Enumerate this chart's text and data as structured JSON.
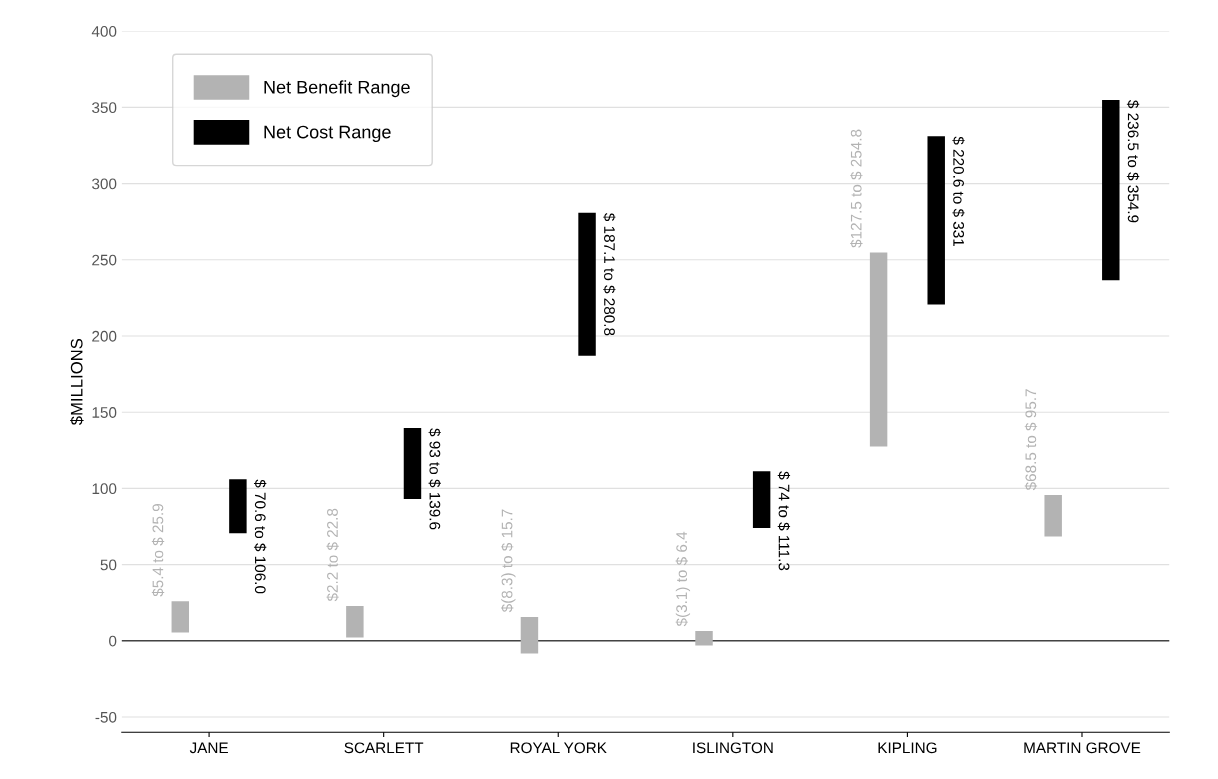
{
  "chart_data": {
    "type": "bar",
    "ylabel": "$MILLIONS",
    "categories": [
      "JANE",
      "SCARLETT",
      "ROYAL YORK",
      "ISLINGTON",
      "KIPLING",
      "MARTIN GROVE"
    ],
    "series": [
      {
        "name": "Net Benefit Range",
        "color": "#b3b3b3",
        "base": [
          5.4,
          2.2,
          -8.3,
          -3.1,
          127.5,
          68.5
        ],
        "values": [
          20.5,
          20.6,
          24.0,
          9.5,
          127.3,
          27.2
        ]
      },
      {
        "name": "Net Cost Range",
        "color": "#000000",
        "base": [
          70.6,
          93,
          187.1,
          74,
          220.6,
          236.5
        ],
        "values": [
          35.4,
          46.6,
          93.7,
          37.3,
          110.4,
          118.4
        ],
        "value_labels": [
          "$ 70.6 to $ 106.0",
          "$ 93 to $ 139.6",
          "$ 187.1 to $ 280.8",
          "$ 74 to $ 111.3",
          "$ 220.6 to $ 331",
          "$ 236.5 to $ 354.9"
        ]
      }
    ],
    "ylim": [
      -60,
      400
    ],
    "yticks": [
      -50,
      0,
      50,
      100,
      150,
      200,
      250,
      300,
      350,
      400
    ],
    "annotations": [
      "$5.4 to $ 25.9",
      "$2.2 to $ 22.8",
      "$(8.3) to $ 15.7",
      "$(3.1) to $ 6.4",
      "$127.5 to $ 254.8",
      "$68.5 to $ 95.7"
    ],
    "grid": "y",
    "legend": "top left"
  }
}
